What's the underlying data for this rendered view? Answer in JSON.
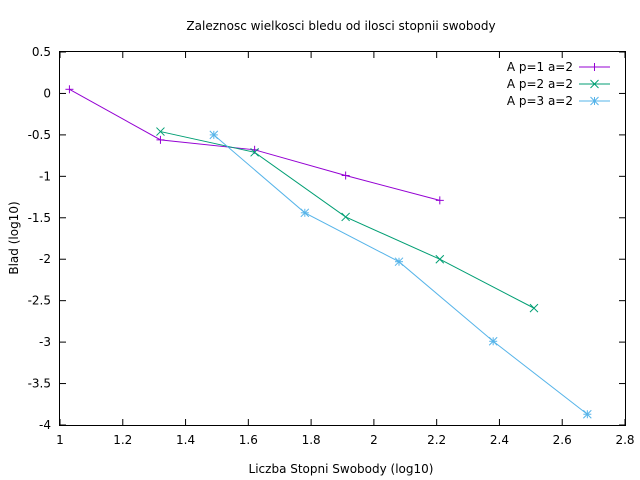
{
  "chart_data": {
    "type": "line",
    "title": "Zaleznosc wielkosci bledu od ilosci stopnii swobody",
    "xlabel": "Liczba Stopni Swobody (log10)",
    "ylabel": "Blad (log10)",
    "xlim": [
      1,
      2.8
    ],
    "ylim": [
      -4,
      0.5
    ],
    "xticks": [
      "1",
      "1.2",
      "1.4",
      "1.6",
      "1.8",
      "2",
      "2.2",
      "2.4",
      "2.6",
      "2.8"
    ],
    "yticks": [
      "0.5",
      "0",
      "-0.5",
      "-1",
      "-1.5",
      "-2",
      "-2.5",
      "-3",
      "-3.5",
      "-4"
    ],
    "grid": false,
    "legend_position": "top-right",
    "series": [
      {
        "name": "A p=1 a=2",
        "color": "#9400d3",
        "marker": "plus",
        "x": [
          1.03,
          1.32,
          1.62,
          1.91,
          2.21
        ],
        "y": [
          0.05,
          -0.56,
          -0.68,
          -0.99,
          -1.29
        ]
      },
      {
        "name": "A p=2 a=2",
        "color": "#009e73",
        "marker": "cross",
        "x": [
          1.32,
          1.62,
          1.91,
          2.21,
          2.51
        ],
        "y": [
          -0.46,
          -0.71,
          -1.49,
          -2.0,
          -2.59
        ]
      },
      {
        "name": "A p=3 a=2",
        "color": "#56b4e9",
        "marker": "star",
        "x": [
          1.49,
          1.78,
          2.08,
          2.38,
          2.68
        ],
        "y": [
          -0.5,
          -1.44,
          -2.03,
          -2.99,
          -3.87
        ]
      }
    ]
  }
}
